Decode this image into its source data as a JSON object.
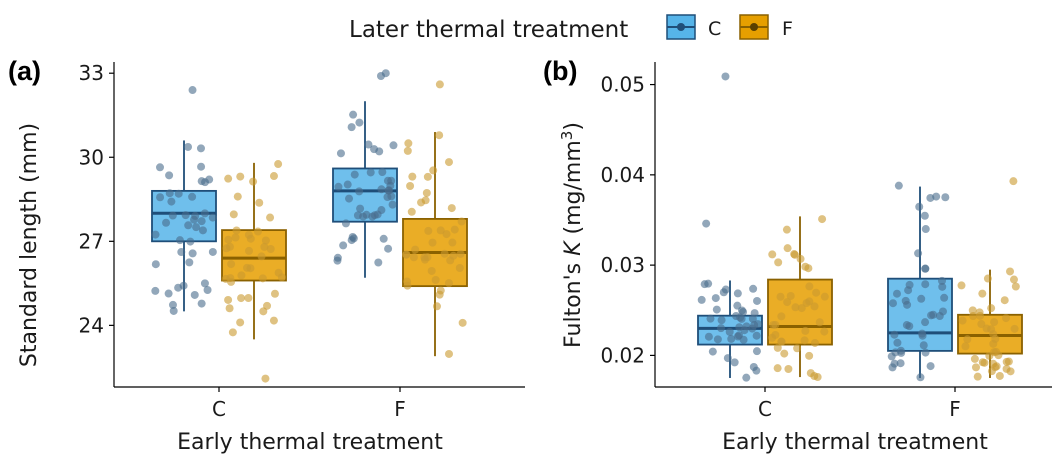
{
  "legend": {
    "title": "Later thermal treatment",
    "entries": [
      {
        "label": "C",
        "fill": "#56B4E9",
        "stroke": "#1F4E79"
      },
      {
        "label": "F",
        "fill": "#E69F00",
        "stroke": "#8A6100"
      }
    ]
  },
  "colors": {
    "C": {
      "fill": "#56B4E9",
      "stroke": "#1F4E79",
      "point": "#4A6D8C"
    },
    "F": {
      "fill": "#E69F00",
      "stroke": "#8A6100",
      "point": "#C99A2E"
    }
  },
  "chart_data": [
    {
      "type": "box",
      "panel_label": "(a)",
      "xlabel": "Early thermal treatment",
      "ylabel": "Standard length (mm)",
      "categories": [
        "C",
        "F"
      ],
      "yticks": [
        24,
        27,
        30,
        33
      ],
      "ytick_labels": [
        "24",
        "27",
        "30",
        "33"
      ],
      "ylim": [
        21.8,
        33.4
      ],
      "series": [
        {
          "name": "C",
          "boxes": [
            {
              "category": "C",
              "min": 24.5,
              "q1": 27.0,
              "median": 28.0,
              "q3": 28.8,
              "max": 30.6
            },
            {
              "category": "F",
              "min": 25.7,
              "q1": 27.7,
              "median": 28.8,
              "q3": 29.6,
              "max": 32.0
            }
          ]
        },
        {
          "name": "F",
          "boxes": [
            {
              "category": "C",
              "min": 23.5,
              "q1": 25.6,
              "median": 26.4,
              "q3": 27.4,
              "max": 29.8
            },
            {
              "category": "F",
              "min": 22.9,
              "q1": 25.4,
              "median": 26.6,
              "q3": 27.8,
              "max": 30.9
            }
          ]
        }
      ],
      "outliers": [
        {
          "series": "C",
          "category": "C",
          "values": [
            32.4
          ]
        },
        {
          "series": "C",
          "category": "F",
          "values": [
            33.0,
            32.9
          ]
        },
        {
          "series": "F",
          "category": "C",
          "values": [
            22.1
          ]
        },
        {
          "series": "F",
          "category": "F",
          "values": [
            32.6
          ]
        }
      ]
    },
    {
      "type": "box",
      "panel_label": "(b)",
      "xlabel": "Early thermal treatment",
      "ylabel": "Fulton's K (mg/mm3)",
      "ylabel_parts": {
        "prefix": "Fulton's ",
        "italic": "K",
        "unit": " (mg/mm",
        "sup": "3",
        "close": ")"
      },
      "categories": [
        "C",
        "F"
      ],
      "yticks": [
        0.02,
        0.03,
        0.04,
        0.05
      ],
      "ytick_labels": [
        "0.02",
        "0.03",
        "0.04",
        "0.05"
      ],
      "ylim": [
        0.0165,
        0.0525
      ],
      "series": [
        {
          "name": "C",
          "boxes": [
            {
              "category": "C",
              "min": 0.0175,
              "q1": 0.0212,
              "median": 0.023,
              "q3": 0.0244,
              "max": 0.0283
            },
            {
              "category": "F",
              "min": 0.0175,
              "q1": 0.0205,
              "median": 0.0225,
              "q3": 0.0285,
              "max": 0.0387
            }
          ]
        },
        {
          "name": "F",
          "boxes": [
            {
              "category": "C",
              "min": 0.0176,
              "q1": 0.0212,
              "median": 0.0232,
              "q3": 0.0284,
              "max": 0.0354
            },
            {
              "category": "F",
              "min": 0.0175,
              "q1": 0.0202,
              "median": 0.0222,
              "q3": 0.0245,
              "max": 0.0295
            }
          ]
        }
      ],
      "outliers": [
        {
          "series": "C",
          "category": "C",
          "values": [
            0.0509,
            0.0346
          ]
        },
        {
          "series": "C",
          "category": "F",
          "values": [
            0.0388
          ]
        },
        {
          "series": "F",
          "category": "C",
          "values": []
        },
        {
          "series": "F",
          "category": "F",
          "values": [
            0.0393
          ]
        }
      ]
    }
  ]
}
